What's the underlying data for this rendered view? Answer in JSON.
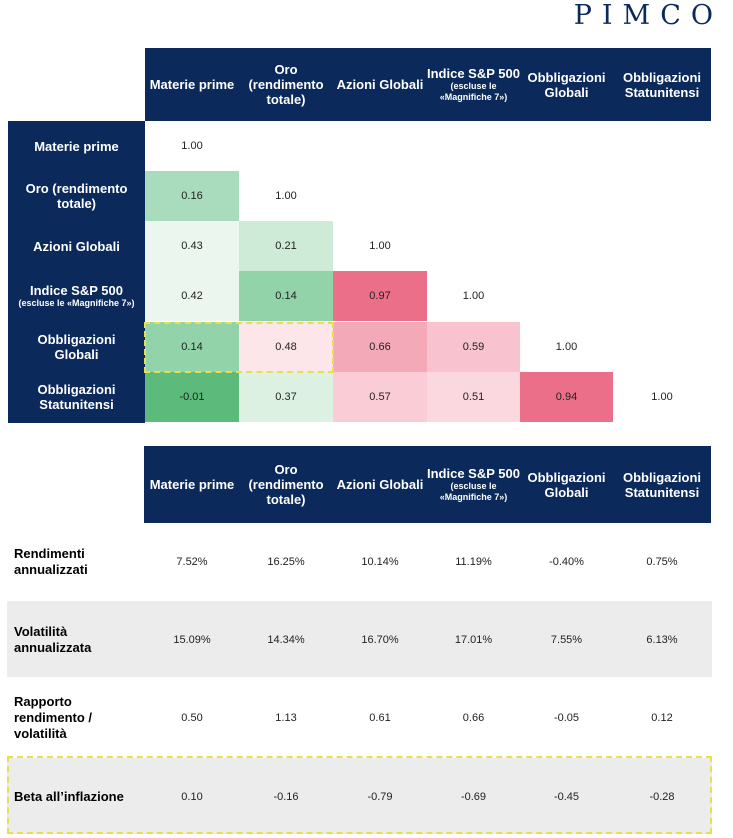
{
  "brand": {
    "logo": "PIMCO"
  },
  "columns": [
    {
      "main": "Materie prime",
      "sub": ""
    },
    {
      "main": "Oro (rendimento totale)",
      "sub": ""
    },
    {
      "main": "Azioni Globali",
      "sub": ""
    },
    {
      "main": "Indice S&P 500",
      "sub": "(escluse le «Magnifiche 7»)"
    },
    {
      "main": "Obbligazioni Globali",
      "sub": ""
    },
    {
      "main": "Obbligazioni Statunitensi",
      "sub": ""
    }
  ],
  "correlation": {
    "rows": [
      {
        "main": "Materie prime",
        "sub": "",
        "values": [
          "1.00"
        ]
      },
      {
        "main": "Oro (rendimento totale)",
        "sub": "",
        "values": [
          "0.16",
          "1.00"
        ]
      },
      {
        "main": "Azioni Globali",
        "sub": "",
        "values": [
          "0.43",
          "0.21",
          "1.00"
        ]
      },
      {
        "main": "Indice S&P 500",
        "sub": "(escluse le «Magnifiche 7»)",
        "values": [
          "0.42",
          "0.14",
          "0.97",
          "1.00"
        ]
      },
      {
        "main": "Obbligazioni Globali",
        "sub": "",
        "values": [
          "0.14",
          "0.48",
          "0.66",
          "0.59",
          "1.00"
        ]
      },
      {
        "main": "Obbligazioni Statunitensi",
        "sub": "",
        "values": [
          "-0.01",
          "0.37",
          "0.57",
          "0.51",
          "0.94",
          "1.00"
        ]
      }
    ],
    "colors": [
      [
        "#ffffff"
      ],
      [
        "#a9dcbc",
        "#ffffff"
      ],
      [
        "#eaf6ee",
        "#cdebd7",
        "#ffffff"
      ],
      [
        "#eaf6ee",
        "#93d3aa",
        "#ec6f8a",
        "#ffffff"
      ],
      [
        "#93d3aa",
        "#fde6ea",
        "#f4a9b9",
        "#f8c3cf",
        "#ffffff"
      ],
      [
        "#5cbb7a",
        "#ddf1e3",
        "#f9ccd6",
        "#fbd8e0",
        "#ec6f8a",
        "#ffffff"
      ]
    ]
  },
  "stats": {
    "rows": [
      {
        "label": "Rendimenti annualizzati",
        "values": [
          "7.52%",
          "16.25%",
          "10.14%",
          "11.19%",
          "-0.40%",
          "0.75%"
        ]
      },
      {
        "label": "Volatilità annualizzata",
        "values": [
          "15.09%",
          "14.34%",
          "16.70%",
          "17.01%",
          "7.55%",
          "6.13%"
        ]
      },
      {
        "label": "Rapporto rendimento / volatilità",
        "values": [
          "0.50",
          "1.13",
          "0.61",
          "0.66",
          "-0.05",
          "0.12"
        ]
      },
      {
        "label": "Beta all’inflazione",
        "values": [
          "0.10",
          "-0.16",
          "-0.79",
          "-0.69",
          "-0.45",
          "-0.28"
        ]
      }
    ]
  }
}
